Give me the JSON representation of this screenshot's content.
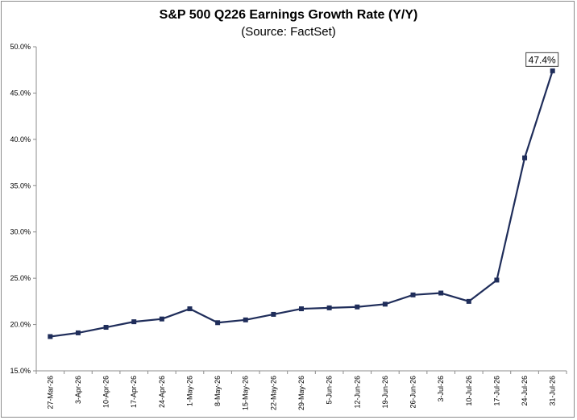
{
  "chart_data": {
    "type": "line",
    "title": "S&P 500 Q226 Earnings Growth Rate (Y/Y)",
    "subtitle": "(Source: FactSet)",
    "xlabel": "",
    "ylabel": "",
    "categories": [
      "27-Mar-26",
      "3-Apr-26",
      "10-Apr-26",
      "17-Apr-26",
      "24-Apr-26",
      "1-May-26",
      "8-May-26",
      "15-May-26",
      "22-May-26",
      "29-May-26",
      "5-Jun-26",
      "12-Jun-26",
      "19-Jun-26",
      "26-Jun-26",
      "3-Jul-26",
      "10-Jul-26",
      "17-Jul-26",
      "24-Jul-26",
      "31-Jul-26"
    ],
    "series": [
      {
        "values": [
          18.7,
          19.1,
          19.7,
          20.3,
          20.6,
          21.7,
          20.2,
          20.5,
          21.1,
          21.7,
          21.8,
          21.9,
          22.2,
          23.2,
          23.4,
          22.5,
          24.8,
          38.0,
          47.4
        ]
      }
    ],
    "ylim": [
      15.0,
      50.0
    ],
    "yticks": [
      15.0,
      20.0,
      25.0,
      30.0,
      35.0,
      40.0,
      45.0,
      50.0
    ],
    "ytick_labels": [
      "15.0%",
      "20.0%",
      "25.0%",
      "30.0%",
      "35.0%",
      "40.0%",
      "45.0%",
      "50.0%"
    ],
    "annotations": [
      {
        "label": "47.4%",
        "index": 18
      }
    ],
    "grid": false,
    "legend": "none",
    "line_color": "#1f2d5a"
  }
}
